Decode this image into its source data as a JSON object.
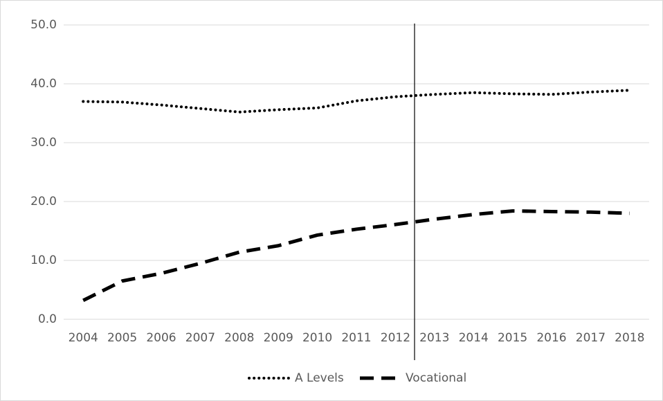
{
  "chart_data": {
    "type": "line",
    "categories": [
      "2004",
      "2005",
      "2006",
      "2007",
      "2008",
      "2009",
      "2010",
      "2011",
      "2012",
      "2013",
      "2014",
      "2015",
      "2016",
      "2017",
      "2018"
    ],
    "series": [
      {
        "name": "A Levels",
        "color": "#000000",
        "style": "dotted",
        "values": [
          37.0,
          36.9,
          36.4,
          35.8,
          35.2,
          35.6,
          35.9,
          37.1,
          37.8,
          38.2,
          38.5,
          38.3,
          38.2,
          38.6,
          38.9
        ]
      },
      {
        "name": "Vocational",
        "color": "#000000",
        "style": "dashed",
        "values": [
          3.2,
          6.5,
          7.8,
          9.5,
          11.4,
          12.5,
          14.3,
          15.3,
          16.1,
          17.0,
          17.8,
          18.4,
          18.3,
          18.2,
          18.0
        ]
      }
    ],
    "ylim": [
      0,
      50
    ],
    "yticks": [
      {
        "value": 0,
        "label": "0.0"
      },
      {
        "value": 10,
        "label": "10.0"
      },
      {
        "value": 20,
        "label": "20.0"
      },
      {
        "value": 30,
        "label": "30.0"
      },
      {
        "value": 40,
        "label": "40.0"
      },
      {
        "value": 50,
        "label": "50.0"
      }
    ],
    "grid": true,
    "legend": "bottom"
  }
}
